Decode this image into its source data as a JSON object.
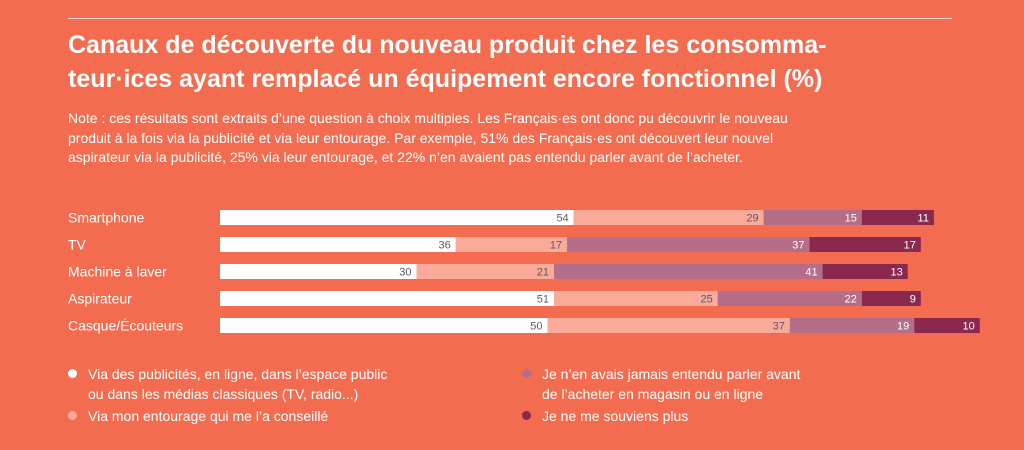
{
  "title": {
    "line1": "Canaux de découverte du nouveau produit chez les consomma-",
    "line2": "teur·ices ayant remplacé un équipement encore fonctionnel (%)"
  },
  "note": {
    "line1": "Note : ces résultats sont extraits d’une question à choix multiples. Les Français·es ont donc pu découvrir le nouveau",
    "line2": "produit à la fois via la publicité et via leur entourage. Par exemple, 51% des Français·es ont découvert leur nouvel",
    "line3": "aspirateur via la publicité, 25% via leur entourage, et 22% n’en avaient pas entendu parler avant de l’acheter."
  },
  "legend": {
    "pub_line1": "Via des publicités, en ligne, dans l’espace public",
    "pub_line2": "ou dans les médias classiques (TV, radio...)",
    "entourage": "Via mon entourage qui me l’a conseillé",
    "jamais_line1": "Je n’en avais jamais entendu parler avant",
    "jamais_line2": "de l’acheter en magasin ou en ligne",
    "souviens": "Je ne me souviens plus"
  },
  "colors": {
    "background": "#F36C4F",
    "pub": "#FFFFFF",
    "entourage": "#F9AA98",
    "jamais": "#B46E8A",
    "souviens": "#8B2850",
    "value_dark": "#5A5A6E",
    "value_light": "#FFFFFF"
  },
  "chart_data": {
    "type": "bar",
    "orientation": "horizontal",
    "stacked": true,
    "categories": [
      "Smartphone",
      "TV",
      "Machine à laver",
      "Aspirateur",
      "Casque/Écouteurs"
    ],
    "series": [
      {
        "name": "Via des publicités, en ligne, dans l’espace public ou dans les médias classiques (TV, radio...)",
        "values": [
          54,
          36,
          30,
          51,
          50
        ]
      },
      {
        "name": "Via mon entourage qui me l’a conseillé",
        "values": [
          29,
          17,
          21,
          25,
          37
        ]
      },
      {
        "name": "Je n’en avais jamais entendu parler avant de l’acheter en magasin ou en ligne",
        "values": [
          15,
          37,
          41,
          22,
          19
        ]
      },
      {
        "name": "Je ne me souviens plus",
        "values": [
          11,
          17,
          13,
          9,
          10
        ]
      }
    ],
    "legend_position": "bottom",
    "grid": false
  }
}
